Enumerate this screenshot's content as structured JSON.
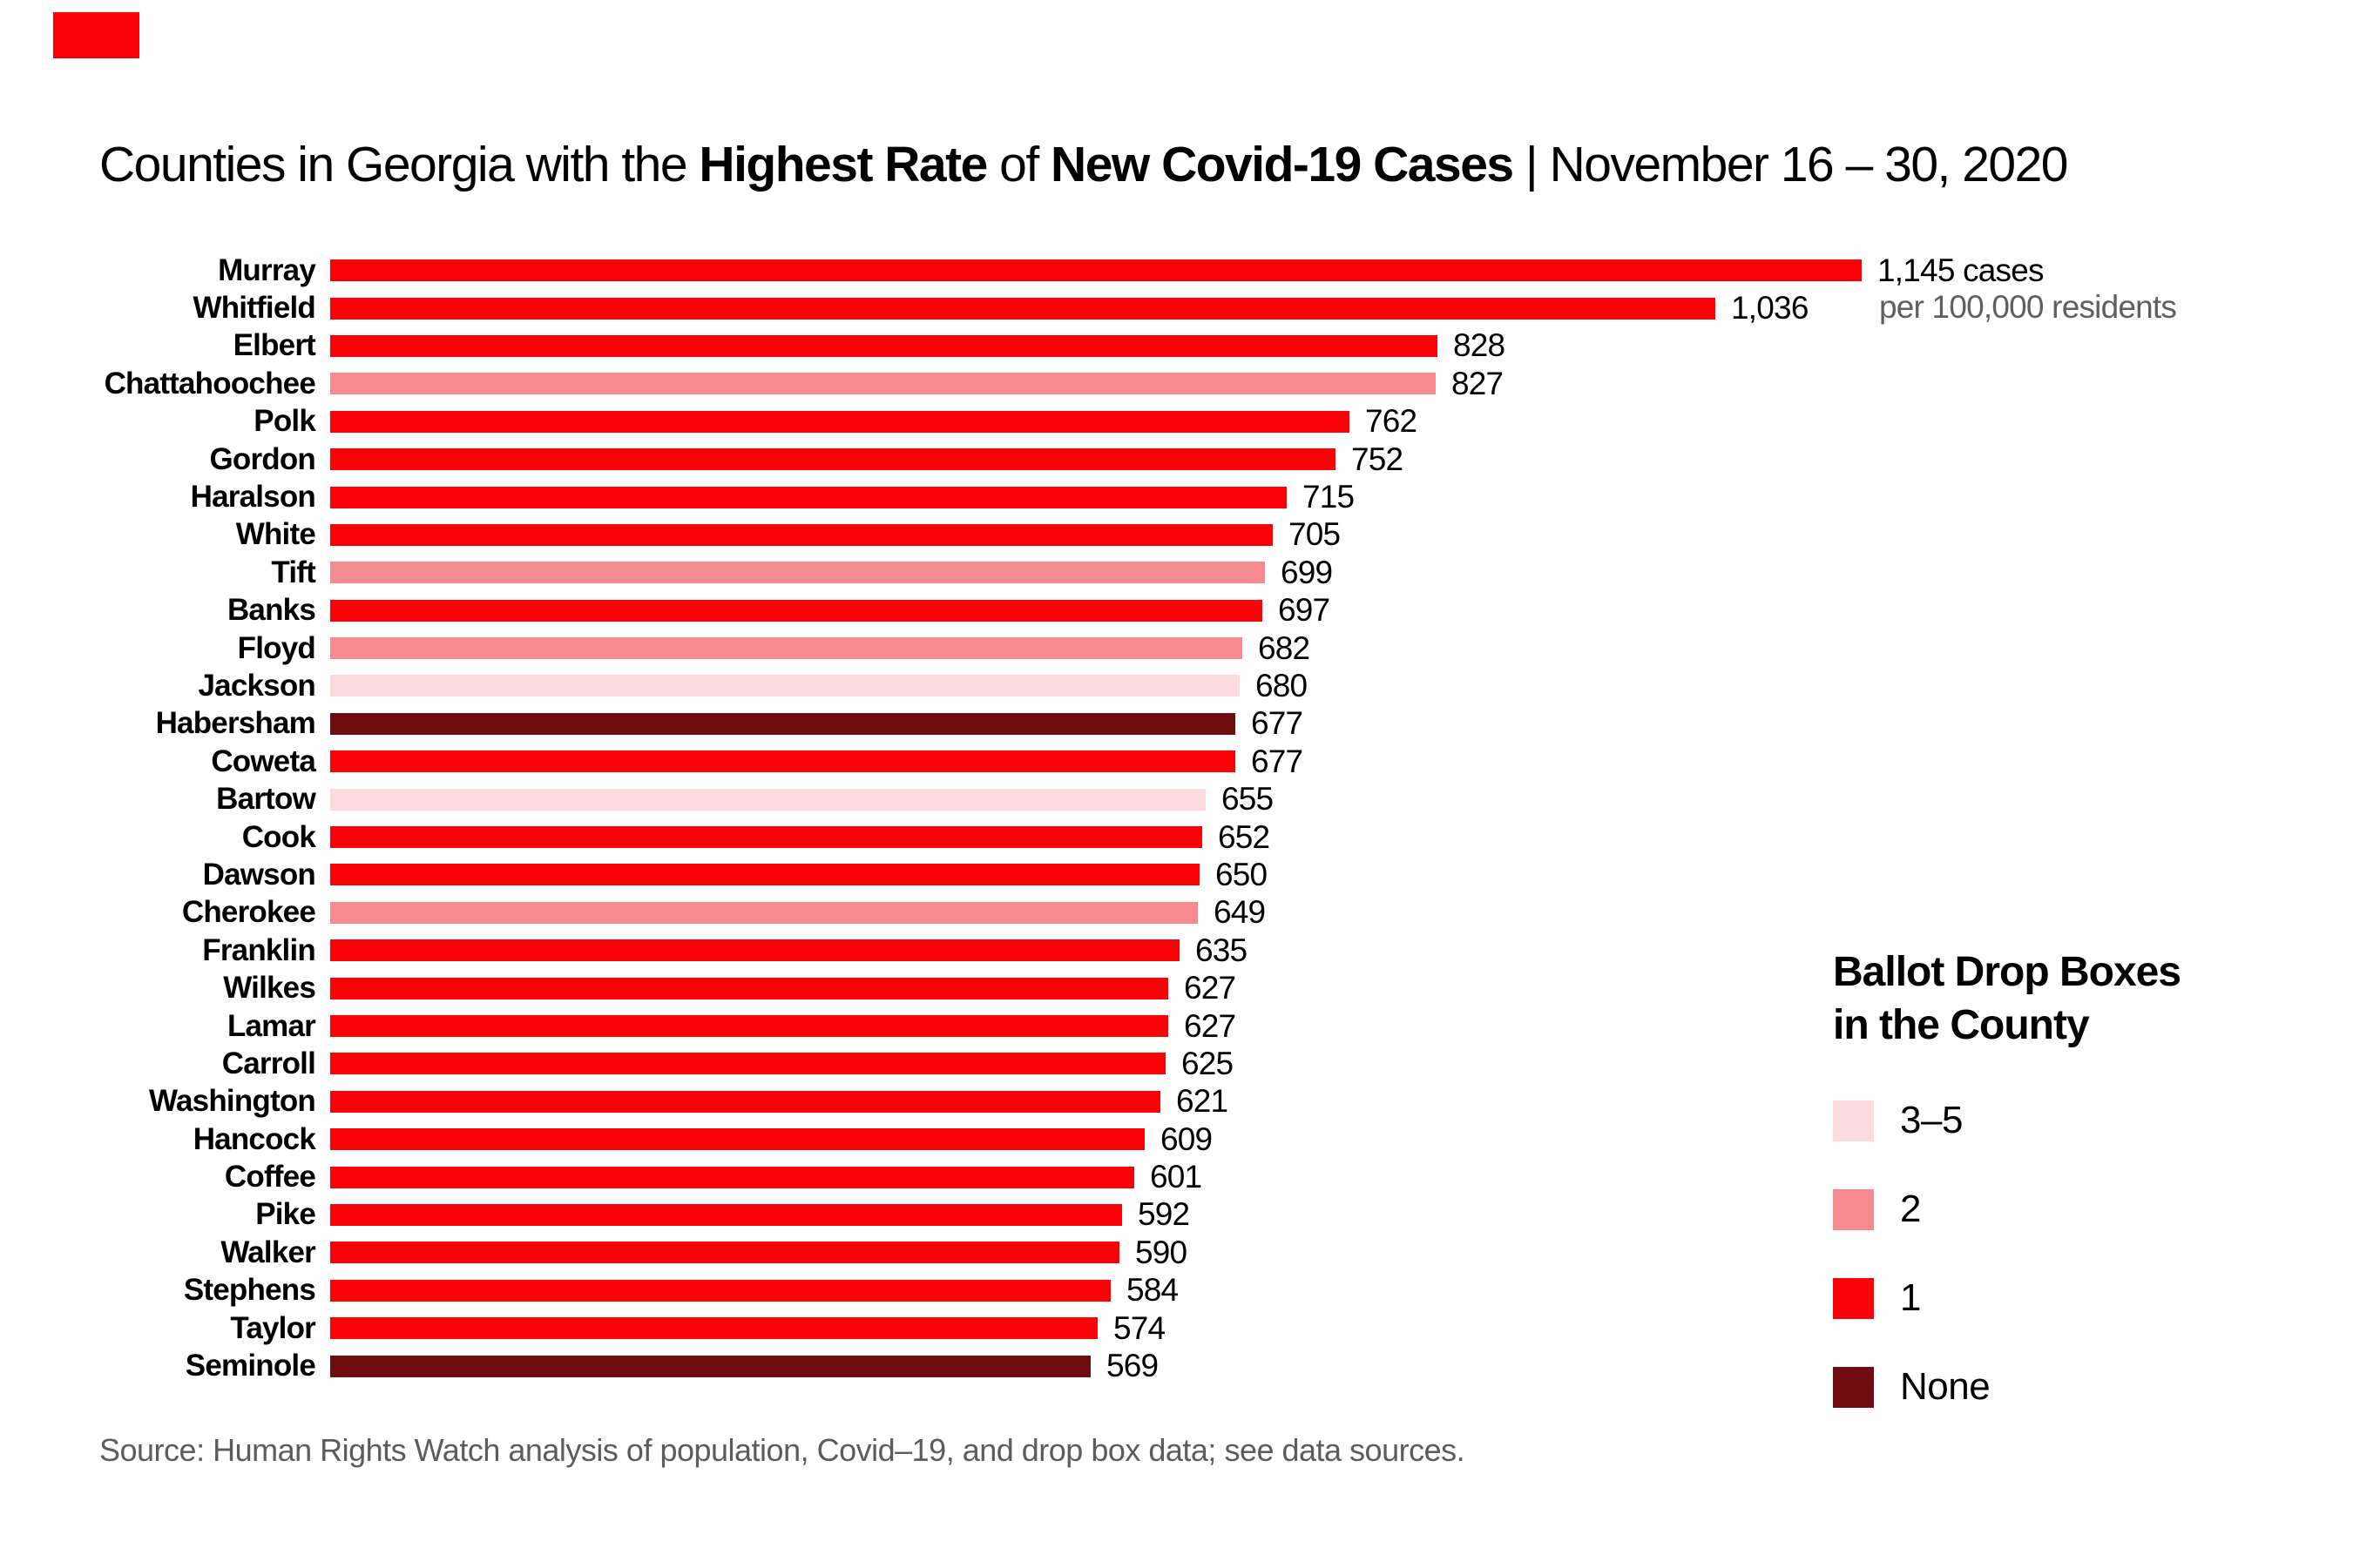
{
  "logo": {
    "color": "#f90309"
  },
  "title": {
    "segments": [
      {
        "text": "Counties in Georgia with the ",
        "bold": false
      },
      {
        "text": "Highest Rate",
        "bold": true
      },
      {
        "text": " of ",
        "bold": false
      },
      {
        "text": "New Covid-19 Cases",
        "bold": true
      },
      {
        "text": " | ",
        "bold": false
      },
      {
        "text": "November 16 – 30, 2020",
        "bold": false
      }
    ]
  },
  "annotation": {
    "line1": "1,145 cases",
    "line2": "per 100,000 residents"
  },
  "chart_data": {
    "type": "bar",
    "orientation": "horizontal",
    "title": "Counties in Georgia with the Highest Rate of New Covid-19 Cases | November 16 – 30, 2020",
    "value_unit": "new Covid-19 cases per 100,000 residents",
    "color_dimension": "Ballot Drop Boxes in the County",
    "xlim": [
      0,
      1200
    ],
    "grid": false,
    "rows": [
      {
        "county": "Murray",
        "value": 1145,
        "label": "1,145 cases",
        "drop_boxes": "1"
      },
      {
        "county": "Whitfield",
        "value": 1036,
        "label": "1,036",
        "drop_boxes": "1"
      },
      {
        "county": "Elbert",
        "value": 828,
        "label": "828",
        "drop_boxes": "1"
      },
      {
        "county": "Chattahoochee",
        "value": 827,
        "label": "827",
        "drop_boxes": "2"
      },
      {
        "county": "Polk",
        "value": 762,
        "label": "762",
        "drop_boxes": "1"
      },
      {
        "county": "Gordon",
        "value": 752,
        "label": "752",
        "drop_boxes": "1"
      },
      {
        "county": "Haralson",
        "value": 715,
        "label": "715",
        "drop_boxes": "1"
      },
      {
        "county": "White",
        "value": 705,
        "label": "705",
        "drop_boxes": "1"
      },
      {
        "county": "Tift",
        "value": 699,
        "label": "699",
        "drop_boxes": "2"
      },
      {
        "county": "Banks",
        "value": 697,
        "label": "697",
        "drop_boxes": "1"
      },
      {
        "county": "Floyd",
        "value": 682,
        "label": "682",
        "drop_boxes": "2"
      },
      {
        "county": "Jackson",
        "value": 680,
        "label": "680",
        "drop_boxes": "3-5"
      },
      {
        "county": "Habersham",
        "value": 677,
        "label": "677",
        "drop_boxes": "none"
      },
      {
        "county": "Coweta",
        "value": 677,
        "label": "677",
        "drop_boxes": "1"
      },
      {
        "county": "Bartow",
        "value": 655,
        "label": "655",
        "drop_boxes": "3-5"
      },
      {
        "county": "Cook",
        "value": 652,
        "label": "652",
        "drop_boxes": "1"
      },
      {
        "county": "Dawson",
        "value": 650,
        "label": "650",
        "drop_boxes": "1"
      },
      {
        "county": "Cherokee",
        "value": 649,
        "label": "649",
        "drop_boxes": "2"
      },
      {
        "county": "Franklin",
        "value": 635,
        "label": "635",
        "drop_boxes": "1"
      },
      {
        "county": "Wilkes",
        "value": 627,
        "label": "627",
        "drop_boxes": "1"
      },
      {
        "county": "Lamar",
        "value": 627,
        "label": "627",
        "drop_boxes": "1"
      },
      {
        "county": "Carroll",
        "value": 625,
        "label": "625",
        "drop_boxes": "1"
      },
      {
        "county": "Washington",
        "value": 621,
        "label": "621",
        "drop_boxes": "1"
      },
      {
        "county": "Hancock",
        "value": 609,
        "label": "609",
        "drop_boxes": "1"
      },
      {
        "county": "Coffee",
        "value": 601,
        "label": "601",
        "drop_boxes": "1"
      },
      {
        "county": "Pike",
        "value": 592,
        "label": "592",
        "drop_boxes": "1"
      },
      {
        "county": "Walker",
        "value": 590,
        "label": "590",
        "drop_boxes": "1"
      },
      {
        "county": "Stephens",
        "value": 584,
        "label": "584",
        "drop_boxes": "1"
      },
      {
        "county": "Taylor",
        "value": 574,
        "label": "574",
        "drop_boxes": "1"
      },
      {
        "county": "Seminole",
        "value": 569,
        "label": "569",
        "drop_boxes": "none"
      }
    ]
  },
  "legend": {
    "title_line1": "Ballot Drop Boxes",
    "title_line2": "in the County",
    "position": "right",
    "items": [
      {
        "label": "3–5",
        "key": "3-5"
      },
      {
        "label": "2",
        "key": "2"
      },
      {
        "label": "1",
        "key": "1"
      },
      {
        "label": "None",
        "key": "none"
      }
    ],
    "colors": {
      "3-5": "#fbdbdd",
      "2": "#f68b8f",
      "1": "#f90309",
      "none": "#6e0c10"
    }
  },
  "source": {
    "text": "Source: Human Rights Watch analysis of population, Covid–19, and drop box data; see data sources."
  }
}
